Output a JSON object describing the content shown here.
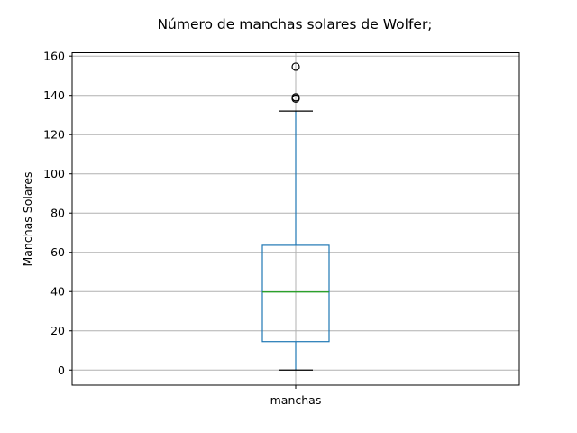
{
  "chart_data": {
    "type": "box",
    "title": "Número de manchas solares de Wolfer;",
    "xlabel": "",
    "ylabel": "Manchas Solares",
    "categories": [
      "manchas"
    ],
    "ylim": [
      -7.7,
      161.7
    ],
    "yticks": [
      0,
      20,
      40,
      60,
      80,
      100,
      120,
      140,
      160
    ],
    "grid": true,
    "boxes": [
      {
        "name": "manchas",
        "whisker_low": 0,
        "q1": 14.5,
        "median": 39.8,
        "q3": 63.6,
        "whisker_high": 132,
        "outliers": [
          138.3,
          139.0,
          154.6
        ]
      }
    ],
    "colors": {
      "box": "#1f77b4",
      "median": "#2ca02c",
      "whisker_cap": "#000000",
      "outlier": "#000000",
      "grid": "#b0b0b0"
    }
  }
}
